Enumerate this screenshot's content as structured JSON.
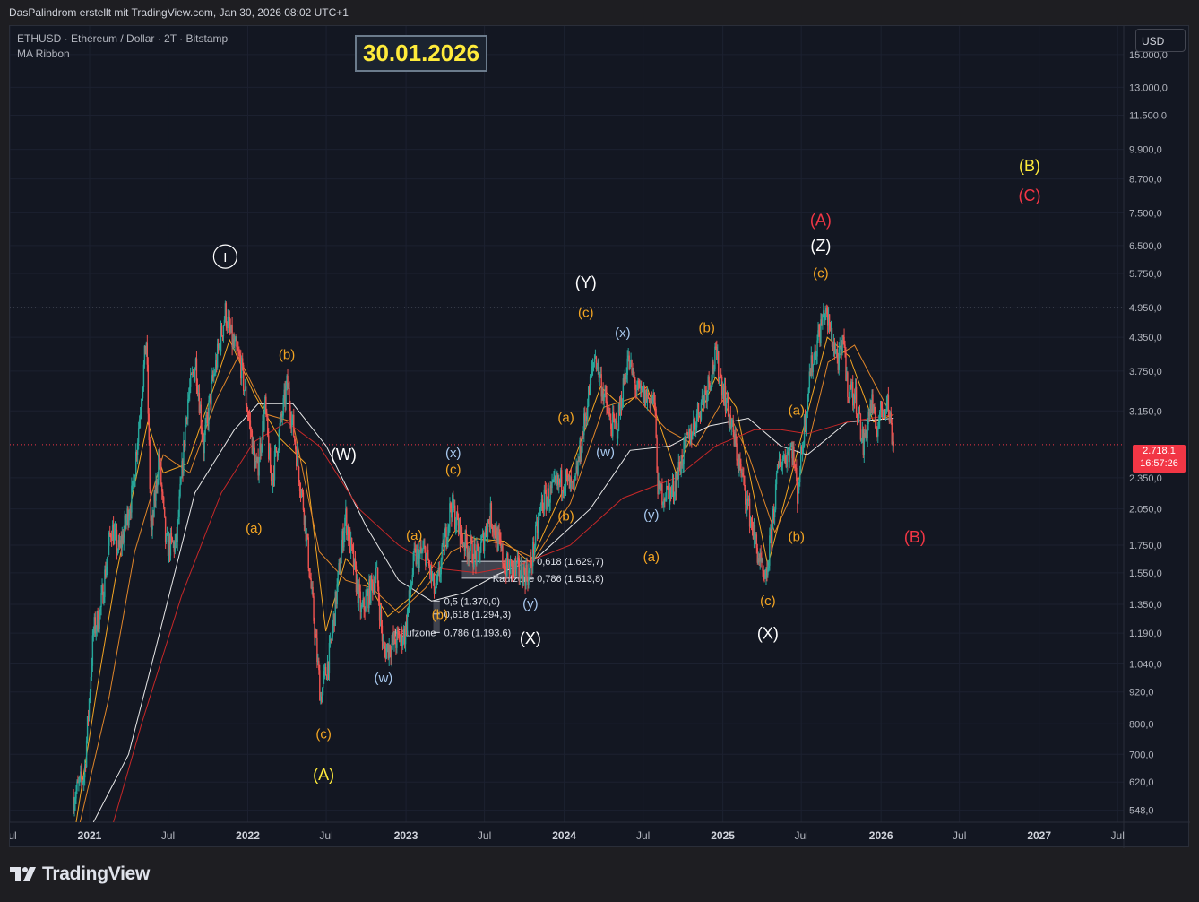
{
  "header": {
    "attribution": "DasPalindrom erstellt mit TradingView.com, Jan 30, 2026 08:02 UTC+1"
  },
  "chart_header": {
    "symbol_line": "ETHUSD · Ethereum / Dollar · 2T · Bitstamp",
    "indicator": "MA Ribbon",
    "date_box": "30.01.2026"
  },
  "currency_button": "USD",
  "price_tag": {
    "price": "2.718,1",
    "countdown": "16:57:26",
    "color": "#f23645"
  },
  "brand": "TradingView",
  "chart_data": {
    "type": "line",
    "scale": "log",
    "ylim": [
      520,
      17000
    ],
    "xlim": [
      "2020-07-01",
      "2027-07-15"
    ],
    "y_ticks": [
      {
        "v": 15000,
        "label": "15.000,0"
      },
      {
        "v": 13000,
        "label": "13.000,0"
      },
      {
        "v": 11500,
        "label": "11.500,0"
      },
      {
        "v": 9900,
        "label": "9.900,0"
      },
      {
        "v": 8700,
        "label": "8.700,0"
      },
      {
        "v": 7500,
        "label": "7.500,0"
      },
      {
        "v": 6500,
        "label": "6.500,0"
      },
      {
        "v": 5750,
        "label": "5.750,0"
      },
      {
        "v": 4950,
        "label": "4.950,0"
      },
      {
        "v": 4350,
        "label": "4.350,0"
      },
      {
        "v": 3750,
        "label": "3.750,0"
      },
      {
        "v": 3150,
        "label": "3.150,0"
      },
      {
        "v": 2350,
        "label": "2.350,0"
      },
      {
        "v": 2050,
        "label": "2.050,0"
      },
      {
        "v": 1750,
        "label": "1.750,0"
      },
      {
        "v": 1550,
        "label": "1.550,0"
      },
      {
        "v": 1350,
        "label": "1.350,0"
      },
      {
        "v": 1190,
        "label": "1.190,0"
      },
      {
        "v": 1040,
        "label": "1.040,0"
      },
      {
        "v": 920,
        "label": "920,0"
      },
      {
        "v": 800,
        "label": "800,0"
      },
      {
        "v": 700,
        "label": "700,0"
      },
      {
        "v": 620,
        "label": "620,0"
      },
      {
        "v": 548,
        "label": "548,0"
      }
    ],
    "x_ticks": [
      {
        "d": "2020-07-01",
        "label": "Jul",
        "bold": false
      },
      {
        "d": "2021-01-01",
        "label": "2021",
        "bold": true
      },
      {
        "d": "2021-07-01",
        "label": "Jul",
        "bold": false
      },
      {
        "d": "2022-01-01",
        "label": "2022",
        "bold": true
      },
      {
        "d": "2022-07-01",
        "label": "Jul",
        "bold": false
      },
      {
        "d": "2023-01-01",
        "label": "2023",
        "bold": true
      },
      {
        "d": "2023-07-01",
        "label": "Jul",
        "bold": false
      },
      {
        "d": "2024-01-01",
        "label": "2024",
        "bold": true
      },
      {
        "d": "2024-07-01",
        "label": "Jul",
        "bold": false
      },
      {
        "d": "2025-01-01",
        "label": "2025",
        "bold": true
      },
      {
        "d": "2025-07-01",
        "label": "Jul",
        "bold": false
      },
      {
        "d": "2026-01-01",
        "label": "2026",
        "bold": true
      },
      {
        "d": "2026-07-01",
        "label": "Jul",
        "bold": false
      },
      {
        "d": "2027-01-01",
        "label": "2027",
        "bold": true
      },
      {
        "d": "2027-07-01",
        "label": "Jul",
        "bold": false
      }
    ],
    "price_path": [
      [
        "2020-11-25",
        580
      ],
      [
        "2020-12-20",
        640
      ],
      [
        "2021-01-10",
        1200
      ],
      [
        "2021-01-25",
        1300
      ],
      [
        "2021-02-20",
        1900
      ],
      [
        "2021-03-10",
        1700
      ],
      [
        "2021-04-10",
        2200
      ],
      [
        "2021-05-12",
        4300
      ],
      [
        "2021-05-23",
        1800
      ],
      [
        "2021-06-10",
        2600
      ],
      [
        "2021-06-26",
        1750
      ],
      [
        "2021-07-20",
        1750
      ],
      [
        "2021-08-15",
        3300
      ],
      [
        "2021-09-03",
        3900
      ],
      [
        "2021-09-21",
        2700
      ],
      [
        "2021-10-10",
        3500
      ],
      [
        "2021-11-10",
        4850
      ],
      [
        "2021-11-28",
        4200
      ],
      [
        "2021-12-15",
        3900
      ],
      [
        "2022-01-22",
        2400
      ],
      [
        "2022-02-10",
        3200
      ],
      [
        "2022-02-24",
        2300
      ],
      [
        "2022-04-02",
        3550
      ],
      [
        "2022-05-12",
        2000
      ],
      [
        "2022-06-18",
        900
      ],
      [
        "2022-07-10",
        1100
      ],
      [
        "2022-08-14",
        2000
      ],
      [
        "2022-09-20",
        1300
      ],
      [
        "2022-10-25",
        1550
      ],
      [
        "2022-11-10",
        1100
      ],
      [
        "2022-12-30",
        1190
      ],
      [
        "2023-01-20",
        1650
      ],
      [
        "2023-02-15",
        1700
      ],
      [
        "2023-03-10",
        1400
      ],
      [
        "2023-04-15",
        2100
      ],
      [
        "2023-05-10",
        1800
      ],
      [
        "2023-06-15",
        1650
      ],
      [
        "2023-07-15",
        2000
      ],
      [
        "2023-08-17",
        1600
      ],
      [
        "2023-10-12",
        1540
      ],
      [
        "2023-11-10",
        2100
      ],
      [
        "2024-01-02",
        2350
      ],
      [
        "2024-01-23",
        2200
      ],
      [
        "2024-03-12",
        4050
      ],
      [
        "2024-04-15",
        3000
      ],
      [
        "2024-05-01",
        2900
      ],
      [
        "2024-05-26",
        3950
      ],
      [
        "2024-06-20",
        3400
      ],
      [
        "2024-07-27",
        3300
      ],
      [
        "2024-08-05",
        2200
      ],
      [
        "2024-09-06",
        2200
      ],
      [
        "2024-10-01",
        2600
      ],
      [
        "2024-11-25",
        3500
      ],
      [
        "2024-12-16",
        4000
      ],
      [
        "2025-01-12",
        3200
      ],
      [
        "2025-02-03",
        2600
      ],
      [
        "2025-03-10",
        1900
      ],
      [
        "2025-04-09",
        1450
      ],
      [
        "2025-05-10",
        2500
      ],
      [
        "2025-06-10",
        2700
      ],
      [
        "2025-06-22",
        2200
      ],
      [
        "2025-07-20",
        3700
      ],
      [
        "2025-08-24",
        4900
      ],
      [
        "2025-09-25",
        3900
      ],
      [
        "2025-10-10",
        4300
      ],
      [
        "2025-10-11",
        3600
      ],
      [
        "2025-11-05",
        3300
      ],
      [
        "2025-11-21",
        2700
      ],
      [
        "2025-12-10",
        3300
      ],
      [
        "2025-12-18",
        2900
      ],
      [
        "2026-01-14",
        3350
      ],
      [
        "2026-01-30",
        2718
      ]
    ],
    "ma_series": [
      {
        "color": "#f5a623",
        "pts": [
          [
            "2020-12-01",
            520
          ],
          [
            "2021-01-15",
            900
          ],
          [
            "2021-03-01",
            1500
          ],
          [
            "2021-05-15",
            3000
          ],
          [
            "2021-06-20",
            2400
          ],
          [
            "2021-08-15",
            2500
          ],
          [
            "2021-10-15",
            3500
          ],
          [
            "2021-11-20",
            4300
          ],
          [
            "2022-01-15",
            3400
          ],
          [
            "2022-03-15",
            2800
          ],
          [
            "2022-05-15",
            2500
          ],
          [
            "2022-06-30",
            1200
          ],
          [
            "2022-08-15",
            1650
          ],
          [
            "2022-10-01",
            1500
          ],
          [
            "2022-11-20",
            1280
          ],
          [
            "2023-01-15",
            1400
          ],
          [
            "2023-03-01",
            1580
          ],
          [
            "2023-04-25",
            1870
          ],
          [
            "2023-06-10",
            1800
          ],
          [
            "2023-08-15",
            1780
          ],
          [
            "2023-10-15",
            1620
          ],
          [
            "2024-01-01",
            2250
          ],
          [
            "2024-03-25",
            3500
          ],
          [
            "2024-05-15",
            3200
          ],
          [
            "2024-07-10",
            3500
          ],
          [
            "2024-09-15",
            2400
          ],
          [
            "2024-12-15",
            3650
          ],
          [
            "2025-02-01",
            3200
          ],
          [
            "2025-04-15",
            1600
          ],
          [
            "2025-06-15",
            2500
          ],
          [
            "2025-08-30",
            4350
          ],
          [
            "2025-10-20",
            4000
          ],
          [
            "2025-12-15",
            3000
          ],
          [
            "2026-01-30",
            3100
          ]
        ]
      },
      {
        "color": "#e0862a",
        "pts": [
          [
            "2020-12-10",
            520
          ],
          [
            "2021-02-15",
            900
          ],
          [
            "2021-04-15",
            1700
          ],
          [
            "2021-06-20",
            2600
          ],
          [
            "2021-08-20",
            2400
          ],
          [
            "2021-10-20",
            3300
          ],
          [
            "2021-12-10",
            4000
          ],
          [
            "2022-02-15",
            3100
          ],
          [
            "2022-04-15",
            3000
          ],
          [
            "2022-06-15",
            1700
          ],
          [
            "2022-08-15",
            1500
          ],
          [
            "2022-10-15",
            1450
          ],
          [
            "2022-12-15",
            1300
          ],
          [
            "2023-02-15",
            1450
          ],
          [
            "2023-04-15",
            1700
          ],
          [
            "2023-06-15",
            1800
          ],
          [
            "2023-08-20",
            1750
          ],
          [
            "2023-10-25",
            1650
          ],
          [
            "2024-01-15",
            2100
          ],
          [
            "2024-04-01",
            3200
          ],
          [
            "2024-06-15",
            3350
          ],
          [
            "2024-08-25",
            2900
          ],
          [
            "2024-11-01",
            2700
          ],
          [
            "2025-01-01",
            3300
          ],
          [
            "2025-03-01",
            2600
          ],
          [
            "2025-05-01",
            1850
          ],
          [
            "2025-07-01",
            2400
          ],
          [
            "2025-09-01",
            3900
          ],
          [
            "2025-11-01",
            4200
          ],
          [
            "2026-01-15",
            3200
          ]
        ]
      },
      {
        "color": "#e8e8e8",
        "pts": [
          [
            "2021-01-10",
            520
          ],
          [
            "2021-04-01",
            700
          ],
          [
            "2021-06-01",
            1100
          ],
          [
            "2021-09-01",
            2200
          ],
          [
            "2021-12-01",
            2900
          ],
          [
            "2022-01-25",
            3250
          ],
          [
            "2022-04-15",
            3250
          ],
          [
            "2022-07-01",
            2700
          ],
          [
            "2022-10-01",
            1900
          ],
          [
            "2022-12-15",
            1500
          ],
          [
            "2023-03-01",
            1370
          ],
          [
            "2023-05-15",
            1420
          ],
          [
            "2023-08-01",
            1540
          ],
          [
            "2023-11-01",
            1660
          ],
          [
            "2024-03-01",
            2050
          ],
          [
            "2024-06-01",
            2650
          ],
          [
            "2024-09-01",
            2700
          ],
          [
            "2024-12-01",
            2950
          ],
          [
            "2025-03-01",
            3050
          ],
          [
            "2025-05-15",
            2700
          ],
          [
            "2025-07-15",
            2600
          ],
          [
            "2025-10-15",
            3000
          ],
          [
            "2026-01-30",
            3050
          ]
        ]
      },
      {
        "color": "#c62828",
        "pts": [
          [
            "2021-02-25",
            520
          ],
          [
            "2021-05-01",
            800
          ],
          [
            "2021-08-01",
            1400
          ],
          [
            "2021-11-01",
            2200
          ],
          [
            "2022-01-15",
            2750
          ],
          [
            "2022-04-01",
            3000
          ],
          [
            "2022-06-15",
            2700
          ],
          [
            "2022-09-15",
            2050
          ],
          [
            "2022-12-15",
            1750
          ],
          [
            "2023-03-15",
            1580
          ],
          [
            "2023-06-15",
            1550
          ],
          [
            "2023-09-15",
            1600
          ],
          [
            "2024-01-15",
            1750
          ],
          [
            "2024-05-15",
            2150
          ],
          [
            "2024-09-15",
            2350
          ],
          [
            "2024-12-15",
            2700
          ],
          [
            "2025-03-15",
            2900
          ],
          [
            "2025-05-15",
            2900
          ],
          [
            "2025-07-15",
            2850
          ],
          [
            "2025-10-15",
            3000
          ],
          [
            "2026-01-30",
            3100
          ]
        ]
      }
    ],
    "hlines": [
      {
        "v": 4950,
        "style": "dotted",
        "color": "#9ea3ad"
      },
      {
        "v": 2718.1,
        "style": "dotted",
        "color": "#f23645"
      }
    ],
    "fib_zones": [
      {
        "x0": "2023-05-10",
        "x1": "2023-10-20",
        "top": 1629.7,
        "bottom": 1513.8,
        "label": "Kaufzone",
        "label_d": "2023-07-20",
        "label_v": 1513.8,
        "levels": [
          {
            "v": 1629.7,
            "label": "0,618 (1.629,7)"
          },
          {
            "v": 1513.8,
            "label": "0,786 (1.513,8)"
          }
        ],
        "levels_d": "2023-10-30"
      },
      {
        "x0": "2023-03-05",
        "x1": "2023-03-20",
        "top": 1370,
        "bottom": 1193.6,
        "label": "Kaufzone",
        "label_d": "2022-12-05",
        "label_v": 1193.6,
        "levels": [
          {
            "v": 1370,
            "label": "0,5 (1.370,0)"
          },
          {
            "v": 1294.3,
            "label": "0,618 (1.294,3)"
          },
          {
            "v": 1193.6,
            "label": "0,786 (1.193,6)"
          }
        ],
        "levels_d": "2023-03-30"
      }
    ],
    "annotations": [
      {
        "t": "I",
        "d": "2021-11-10",
        "v": 6050,
        "c": "#ffffff",
        "circle": true
      },
      {
        "t": "(a)",
        "d": "2022-01-15",
        "v": 1850,
        "c": "#f5a623"
      },
      {
        "t": "(b)",
        "d": "2022-04-01",
        "v": 3950,
        "c": "#f5a623"
      },
      {
        "t": "(W)",
        "d": "2022-08-10",
        "v": 2540,
        "c": "#ffffff",
        "big": true
      },
      {
        "t": "(c)",
        "d": "2022-06-25",
        "v": 750,
        "c": "#f5a623"
      },
      {
        "t": "(A)",
        "d": "2022-06-25",
        "v": 625,
        "c": "#ffeb3b",
        "big": true
      },
      {
        "t": "(w)",
        "d": "2022-11-10",
        "v": 960,
        "c": "#a8c8ee"
      },
      {
        "t": "(a)",
        "d": "2023-01-20",
        "v": 1790,
        "c": "#f5a623"
      },
      {
        "t": "(x)",
        "d": "2023-04-20",
        "v": 2570,
        "c": "#a8c8ee"
      },
      {
        "t": "(c)",
        "d": "2023-04-20",
        "v": 2390,
        "c": "#f5a623"
      },
      {
        "t": "(b)",
        "d": "2023-03-20",
        "v": 1265,
        "c": "#f5a623"
      },
      {
        "t": "(y)",
        "d": "2023-10-15",
        "v": 1330,
        "c": "#a8c8ee"
      },
      {
        "t": "(X)",
        "d": "2023-10-15",
        "v": 1135,
        "c": "#ffffff",
        "big": true
      },
      {
        "t": "(Y)",
        "d": "2024-02-20",
        "v": 5400,
        "c": "#ffffff",
        "big": true
      },
      {
        "t": "(c)",
        "d": "2024-02-20",
        "v": 4750,
        "c": "#f5a623"
      },
      {
        "t": "(a)",
        "d": "2024-01-05",
        "v": 3000,
        "c": "#f5a623"
      },
      {
        "t": "(b)",
        "d": "2024-01-05",
        "v": 1950,
        "c": "#f5a623"
      },
      {
        "t": "(x)",
        "d": "2024-05-15",
        "v": 4350,
        "c": "#a8c8ee"
      },
      {
        "t": "(w)",
        "d": "2024-04-05",
        "v": 2580,
        "c": "#a8c8ee"
      },
      {
        "t": "(y)",
        "d": "2024-07-20",
        "v": 1960,
        "c": "#a8c8ee"
      },
      {
        "t": "(a)",
        "d": "2024-07-20",
        "v": 1630,
        "c": "#f5a623"
      },
      {
        "t": "(b)",
        "d": "2024-11-25",
        "v": 4450,
        "c": "#f5a623"
      },
      {
        "t": "(c)",
        "d": "2025-04-15",
        "v": 1345,
        "c": "#f5a623"
      },
      {
        "t": "(X)",
        "d": "2025-04-15",
        "v": 1160,
        "c": "#ffffff",
        "big": true
      },
      {
        "t": "(a)",
        "d": "2025-06-20",
        "v": 3100,
        "c": "#f5a623"
      },
      {
        "t": "(b)",
        "d": "2025-06-20",
        "v": 1780,
        "c": "#f5a623"
      },
      {
        "t": "(A)",
        "d": "2025-08-15",
        "v": 7100,
        "c": "#f23645",
        "big": true
      },
      {
        "t": "(Z)",
        "d": "2025-08-15",
        "v": 6350,
        "c": "#ffffff",
        "big": true
      },
      {
        "t": "(c)",
        "d": "2025-08-15",
        "v": 5650,
        "c": "#f5a623"
      },
      {
        "t": "(B)",
        "d": "2026-03-20",
        "v": 1770,
        "c": "#f23645",
        "big": true
      },
      {
        "t": "(B)",
        "d": "2026-12-10",
        "v": 9000,
        "c": "#ffeb3b",
        "big": true
      },
      {
        "t": "(C)",
        "d": "2026-12-10",
        "v": 7900,
        "c": "#f23645",
        "big": true
      }
    ]
  }
}
